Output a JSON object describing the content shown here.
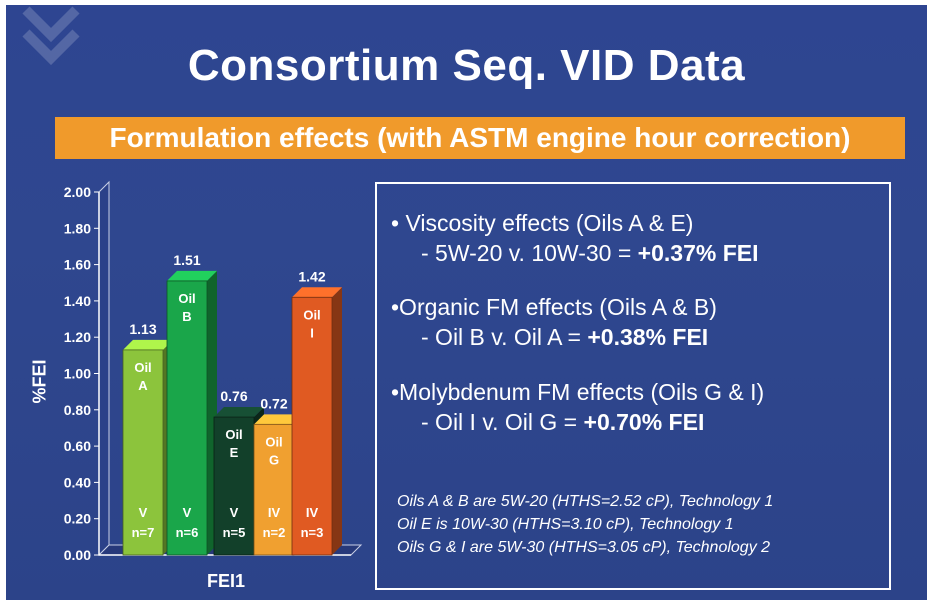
{
  "slide": {
    "title": "Consortium Seq. VID Data",
    "banner": "Formulation effects (with ASTM engine hour correction)",
    "accent_color": "#f09a2b",
    "background_color": "#2e4591"
  },
  "chart_data": {
    "type": "bar",
    "title": "",
    "ylabel": "%FEI",
    "xlabel": "FEI1",
    "ylim": [
      0,
      2.0
    ],
    "yticks": [
      "0.00",
      "0.20",
      "0.40",
      "0.60",
      "0.80",
      "1.00",
      "1.20",
      "1.40",
      "1.60",
      "1.80",
      "2.00"
    ],
    "grid": false,
    "bars": [
      {
        "label_top": "Oil",
        "label_bottom": "A",
        "value": 1.13,
        "value_label": "1.13",
        "category": "V",
        "n": "n=7",
        "color": "#8cc43c"
      },
      {
        "label_top": "Oil",
        "label_bottom": "B",
        "value": 1.51,
        "value_label": "1.51",
        "category": "V",
        "n": "n=6",
        "color": "#1aa64a"
      },
      {
        "label_top": "Oil",
        "label_bottom": "E",
        "value": 0.76,
        "value_label": "0.76",
        "category": "V",
        "n": "n=5",
        "color": "#12402a"
      },
      {
        "label_top": "Oil",
        "label_bottom": "G",
        "value": 0.72,
        "value_label": "0.72",
        "category": "IV",
        "n": "n=2",
        "color": "#f0a030"
      },
      {
        "label_top": "Oil",
        "label_bottom": "I",
        "value": 1.42,
        "value_label": "1.42",
        "category": "IV",
        "n": "n=3",
        "color": "#e05a22"
      }
    ]
  },
  "panel": {
    "bullets": [
      {
        "head": "• Viscosity effects (Oils A & E)",
        "sub": "- 5W-20 v. 10W-30 = ",
        "sub_bold": "+0.37% FEI"
      },
      {
        "head": "•Organic FM effects (Oils A & B)",
        "sub": "- Oil B v. Oil A = ",
        "sub_bold": "+0.38% FEI"
      },
      {
        "head": "•Molybdenum FM effects (Oils G & I)",
        "sub": "- Oil I v. Oil G = ",
        "sub_bold": "+0.70% FEI"
      }
    ],
    "notes": [
      "Oils A & B are 5W-20 (HTHS=2.52 cP), Technology 1",
      "Oil E is 10W-30 (HTHS=3.10 cP), Technology 1",
      "Oils G & I are 5W-30 (HTHS=3.05 cP), Technology 2"
    ]
  }
}
